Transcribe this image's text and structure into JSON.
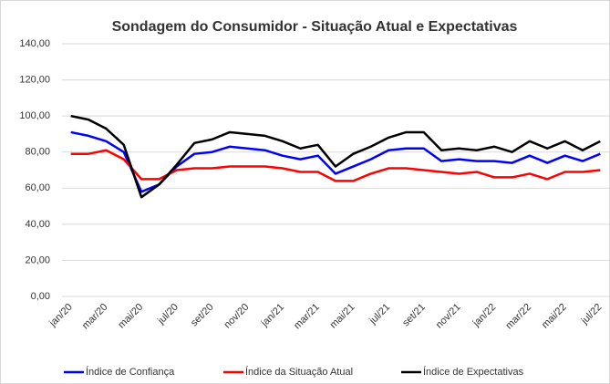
{
  "chart_data": {
    "type": "line",
    "title": "Sondagem do Consumidor - Situação Atual e Expectativas",
    "categories": [
      "jan/20",
      null,
      "mar/20",
      null,
      "mai/20",
      null,
      "jul/20",
      null,
      "set/20",
      null,
      "nov/20",
      null,
      "jan/21",
      null,
      "mar/21",
      null,
      "mai/21",
      null,
      "jul/21",
      null,
      "set/21",
      null,
      "nov/21",
      null,
      "jan/22",
      null,
      "mar/22",
      null,
      "mai/22",
      null,
      "jul/22"
    ],
    "series": [
      {
        "name": "Índice de Confiança",
        "color": "#0000ff",
        "values": [
          91,
          89,
          86,
          80,
          58,
          62,
          72,
          79,
          80,
          83,
          82,
          81,
          78,
          76,
          78,
          68,
          72,
          76,
          81,
          82,
          82,
          75,
          76,
          75,
          75,
          74,
          78,
          74,
          78,
          75,
          79
        ]
      },
      {
        "name": "Índice da Situação Atual",
        "color": "#ff0000",
        "values": [
          79,
          79,
          81,
          76,
          65,
          65,
          70,
          71,
          71,
          72,
          72,
          72,
          71,
          69,
          69,
          64,
          64,
          68,
          71,
          71,
          70,
          69,
          68,
          69,
          66,
          66,
          68,
          65,
          69,
          69,
          70
        ]
      },
      {
        "name": "Índice de Expectativas",
        "color": "#000000",
        "values": [
          100,
          98,
          93,
          84,
          55,
          62,
          73,
          85,
          87,
          91,
          90,
          89,
          86,
          82,
          84,
          72,
          79,
          83,
          88,
          91,
          91,
          81,
          82,
          81,
          83,
          80,
          86,
          82,
          86,
          81,
          86
        ]
      }
    ],
    "ylim": [
      0,
      140
    ],
    "yticks": [
      {
        "value": 0,
        "label": "0,00"
      },
      {
        "value": 20,
        "label": "20,00"
      },
      {
        "value": 40,
        "label": "40,00"
      },
      {
        "value": 60,
        "label": "60,00"
      },
      {
        "value": 80,
        "label": "80,00"
      },
      {
        "value": 100,
        "label": "100,00"
      },
      {
        "value": 120,
        "label": "120,00"
      },
      {
        "value": 140,
        "label": "140,00"
      }
    ],
    "grid": true,
    "legend": "bottom"
  }
}
